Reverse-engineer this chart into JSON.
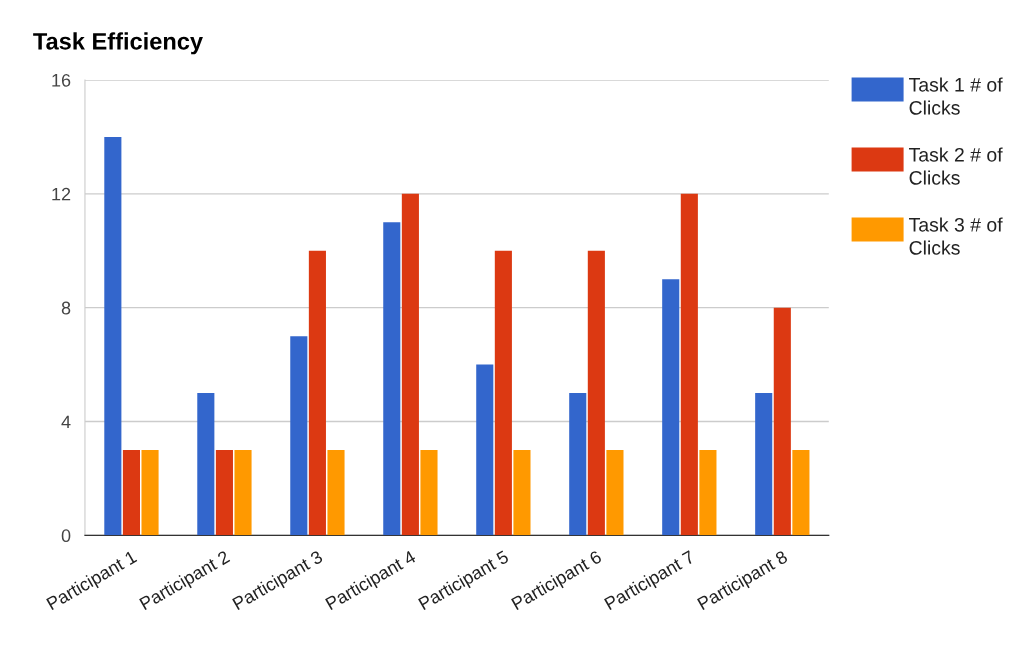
{
  "chart_data": {
    "type": "bar",
    "title": "Task Efficiency",
    "categories": [
      "Participant 1",
      "Participant 2",
      "Participant 3",
      "Participant 4",
      "Participant 5",
      "Participant 6",
      "Participant 7",
      "Participant 8"
    ],
    "series": [
      {
        "name": "Task 1 # of Clicks",
        "color": "#3366cc",
        "values": [
          14,
          5,
          7,
          11,
          6,
          5,
          9,
          5
        ]
      },
      {
        "name": "Task 2 # of Clicks",
        "color": "#dc3912",
        "values": [
          3,
          3,
          10,
          12,
          10,
          10,
          12,
          8
        ]
      },
      {
        "name": "Task 3 # of Clicks",
        "color": "#ff9900",
        "values": [
          3,
          3,
          3,
          3,
          3,
          3,
          3,
          3
        ]
      }
    ],
    "ylim": [
      0,
      16
    ],
    "yticks": [
      0,
      4,
      8,
      12,
      16
    ],
    "grid": "y",
    "legend": "top right"
  }
}
